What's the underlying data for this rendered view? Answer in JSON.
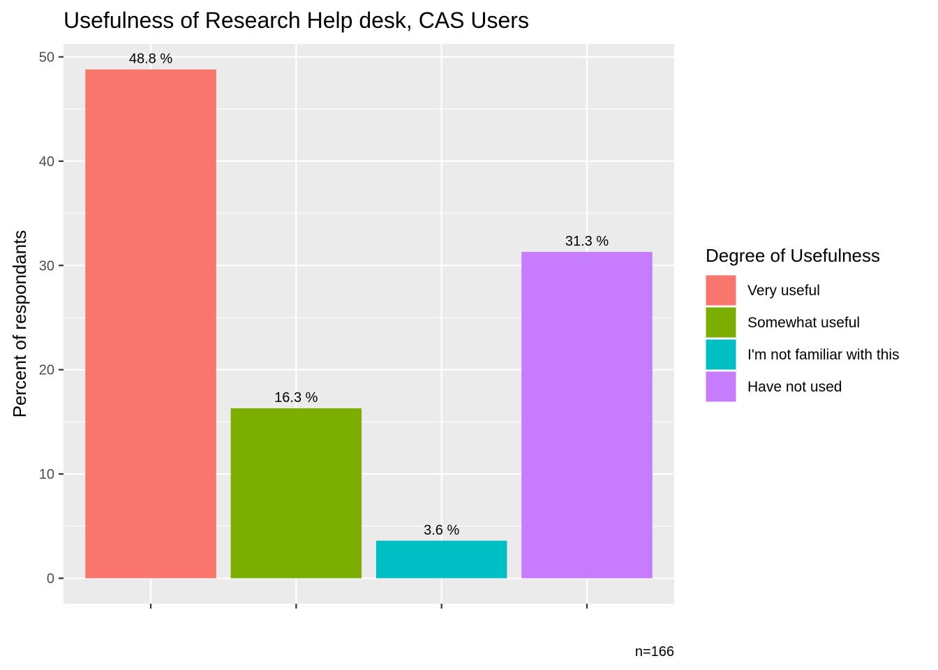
{
  "chart_data": {
    "type": "bar",
    "title": "Usefulness of Research Help desk,  CAS Users",
    "xlabel": "",
    "ylabel": "Percent of respondants",
    "caption": "n=166",
    "categories": [
      "Very useful",
      "Somewhat useful",
      "I'm not familiar with this",
      "Have not used"
    ],
    "values": [
      48.8,
      16.3,
      3.6,
      31.3
    ],
    "value_labels": [
      "48.8 %",
      "16.3 %",
      "3.6 %",
      "31.3 %"
    ],
    "colors": [
      "#F8766D",
      "#7CAE00",
      "#00BFC4",
      "#C77CFF"
    ],
    "ylim": [
      -2.44,
      51.24
    ],
    "yticks": [
      0,
      10,
      20,
      30,
      40,
      50
    ],
    "ytick_labels": [
      "0",
      "10",
      "20",
      "30",
      "40",
      "50"
    ],
    "grid": true,
    "legend": {
      "title": "Degree of Usefulness",
      "position": "right",
      "entries": [
        "Very useful",
        "Somewhat useful",
        "I'm not familiar with this",
        "Have not used"
      ]
    },
    "panel_background": "#EBEBEB",
    "grid_color": "#FFFFFF"
  }
}
